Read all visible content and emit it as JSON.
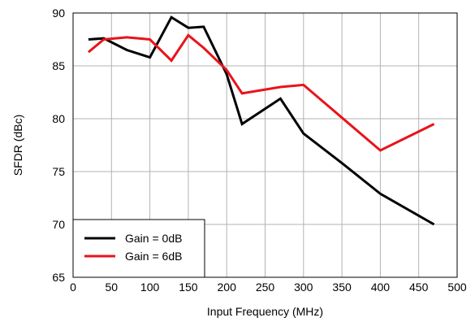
{
  "chart_data": {
    "type": "line",
    "title": "",
    "xlabel": "Input Frequency (MHz)",
    "ylabel": "SFDR (dBc)",
    "xlim": [
      0,
      500
    ],
    "ylim": [
      65,
      90
    ],
    "xticks": [
      0,
      50,
      100,
      150,
      200,
      250,
      300,
      350,
      400,
      450,
      500
    ],
    "yticks": [
      65,
      70,
      75,
      80,
      85,
      90
    ],
    "grid": true,
    "legend_position": "bottom-left",
    "series": [
      {
        "name": "Gain = 0dB",
        "color": "#000000",
        "x": [
          20,
          40,
          70,
          100,
          128,
          150,
          170,
          200,
          220,
          270,
          300,
          350,
          400,
          470
        ],
        "y": [
          87.5,
          87.6,
          86.5,
          85.8,
          89.6,
          88.6,
          88.7,
          84.2,
          79.5,
          81.9,
          78.6,
          75.8,
          72.9,
          70.0
        ]
      },
      {
        "name": "Gain = 6dB",
        "color": "#e8141b",
        "x": [
          20,
          40,
          70,
          100,
          128,
          150,
          170,
          200,
          220,
          270,
          300,
          350,
          400,
          470
        ],
        "y": [
          86.3,
          87.5,
          87.7,
          87.5,
          85.5,
          87.9,
          86.7,
          84.6,
          82.4,
          83.0,
          83.2,
          80.1,
          77.0,
          79.5
        ]
      }
    ]
  }
}
